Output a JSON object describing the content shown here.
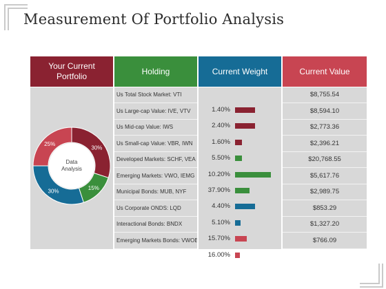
{
  "title": "Measurement Of Portfolio Analysis",
  "headers": {
    "portfolio_line1": "Your Current",
    "portfolio_line2": "Portfolio",
    "holding": "Holding",
    "weight": "Current Weight",
    "value": "Current Value"
  },
  "colors": {
    "maroon": "#8a2231",
    "green": "#3a8f3c",
    "blue": "#166c96",
    "red": "#c84552",
    "panel": "#d8d8d8"
  },
  "donut": {
    "center_line1": "Data",
    "center_line2": "Analysis",
    "segments": [
      {
        "label": "30%",
        "value": 30,
        "color": "#8a2231"
      },
      {
        "label": "15%",
        "value": 15,
        "color": "#3a8f3c"
      },
      {
        "label": "30%",
        "value": 30,
        "color": "#166c96"
      },
      {
        "label": "25%",
        "value": 25,
        "color": "#c84552"
      }
    ]
  },
  "holdings": [
    "Us Total Stock Market: VTI",
    "Us Large-cap Value: IVE, VTV",
    "Us Mid-cap Value: IWS",
    "Us Small-cap Value: VBR, IWN",
    "Developed Markets: SCHF, VEA",
    "Emerging Markets: VWO, IEMG",
    "Municipal Bonds: MUB, NYF",
    "Us Corporate ONDS: LQD",
    "Interactional Bonds: BNDX",
    "Emerging Markets Bonds: VWOB"
  ],
  "weights": [
    {
      "label": "1.40%",
      "bar_fraction": 0.55,
      "color": "#8a2231"
    },
    {
      "label": "2.40%",
      "bar_fraction": 0.55,
      "color": "#8a2231"
    },
    {
      "label": "1.60%",
      "bar_fraction": 0.2,
      "color": "#8a2231"
    },
    {
      "label": "5.50%",
      "bar_fraction": 0.2,
      "color": "#3a8f3c"
    },
    {
      "label": "10.20%",
      "bar_fraction": 1.0,
      "color": "#3a8f3c"
    },
    {
      "label": "37.90%",
      "bar_fraction": 0.4,
      "color": "#3a8f3c"
    },
    {
      "label": "4.40%",
      "bar_fraction": 0.55,
      "color": "#166c96"
    },
    {
      "label": "5.10%",
      "bar_fraction": 0.15,
      "color": "#166c96"
    },
    {
      "label": "15.70%",
      "bar_fraction": 0.33,
      "color": "#c84552"
    },
    {
      "label": "16.00%",
      "bar_fraction": 0.14,
      "color": "#c84552"
    }
  ],
  "values": [
    "$8,755.54",
    "$8,594.10",
    "$2,773.36",
    "$2,396.21",
    "$20,768.55",
    "$5,617.76",
    "$2,989.75",
    "$853.29",
    "$1,327.20",
    "$766.09"
  ]
}
